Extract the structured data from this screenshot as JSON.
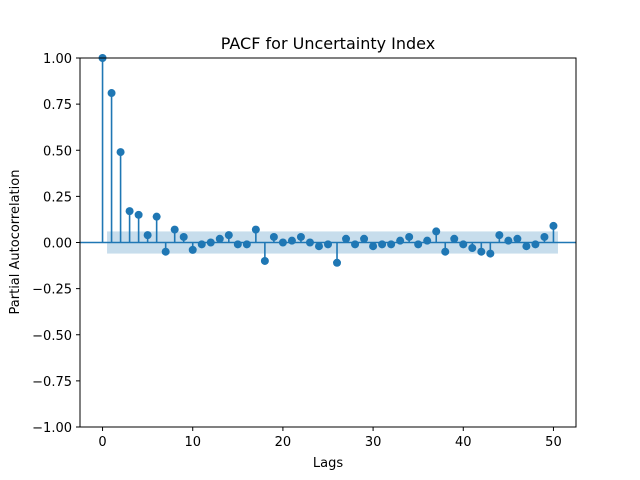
{
  "chart_data": {
    "type": "stem",
    "title": "PACF for Uncertainty Index",
    "xlabel": "Lags",
    "ylabel": "Partial Autocorrelation",
    "xlim": [
      -2.5,
      52.5
    ],
    "ylim": [
      -1.0,
      1.0
    ],
    "xticks": [
      0,
      10,
      20,
      30,
      40,
      50
    ],
    "yticks": [
      "1.00",
      "0.75",
      "0.50",
      "0.25",
      "0.00",
      "−0.25",
      "−0.50",
      "−0.75",
      "−1.00"
    ],
    "ytick_values": [
      1.0,
      0.75,
      0.5,
      0.25,
      0.0,
      -0.25,
      -0.5,
      -0.75,
      -1.0
    ],
    "confidence_band": {
      "lower": -0.06,
      "upper": 0.06,
      "from_lag": 0.5,
      "to_lag": 50.5
    },
    "lags": [
      0,
      1,
      2,
      3,
      4,
      5,
      6,
      7,
      8,
      9,
      10,
      11,
      12,
      13,
      14,
      15,
      16,
      17,
      18,
      19,
      20,
      21,
      22,
      23,
      24,
      25,
      26,
      27,
      28,
      29,
      30,
      31,
      32,
      33,
      34,
      35,
      36,
      37,
      38,
      39,
      40,
      41,
      42,
      43,
      44,
      45,
      46,
      47,
      48,
      49,
      50
    ],
    "values": [
      1.0,
      0.81,
      0.49,
      0.17,
      0.15,
      0.04,
      0.14,
      -0.05,
      0.07,
      0.03,
      -0.04,
      -0.01,
      0.0,
      0.02,
      0.04,
      -0.01,
      -0.01,
      0.07,
      -0.1,
      0.03,
      0.0,
      0.01,
      0.03,
      0.0,
      -0.02,
      -0.01,
      -0.11,
      0.02,
      -0.01,
      0.02,
      -0.02,
      -0.01,
      -0.01,
      0.01,
      0.03,
      -0.01,
      0.01,
      0.06,
      -0.05,
      0.02,
      -0.01,
      -0.03,
      -0.05,
      -0.06,
      0.04,
      0.01,
      0.02,
      -0.02,
      -0.01,
      0.03,
      0.09
    ],
    "colors": {
      "stem": "#1f77b4",
      "band": "#1f77b4",
      "zero_line": "#1f77b4"
    }
  }
}
